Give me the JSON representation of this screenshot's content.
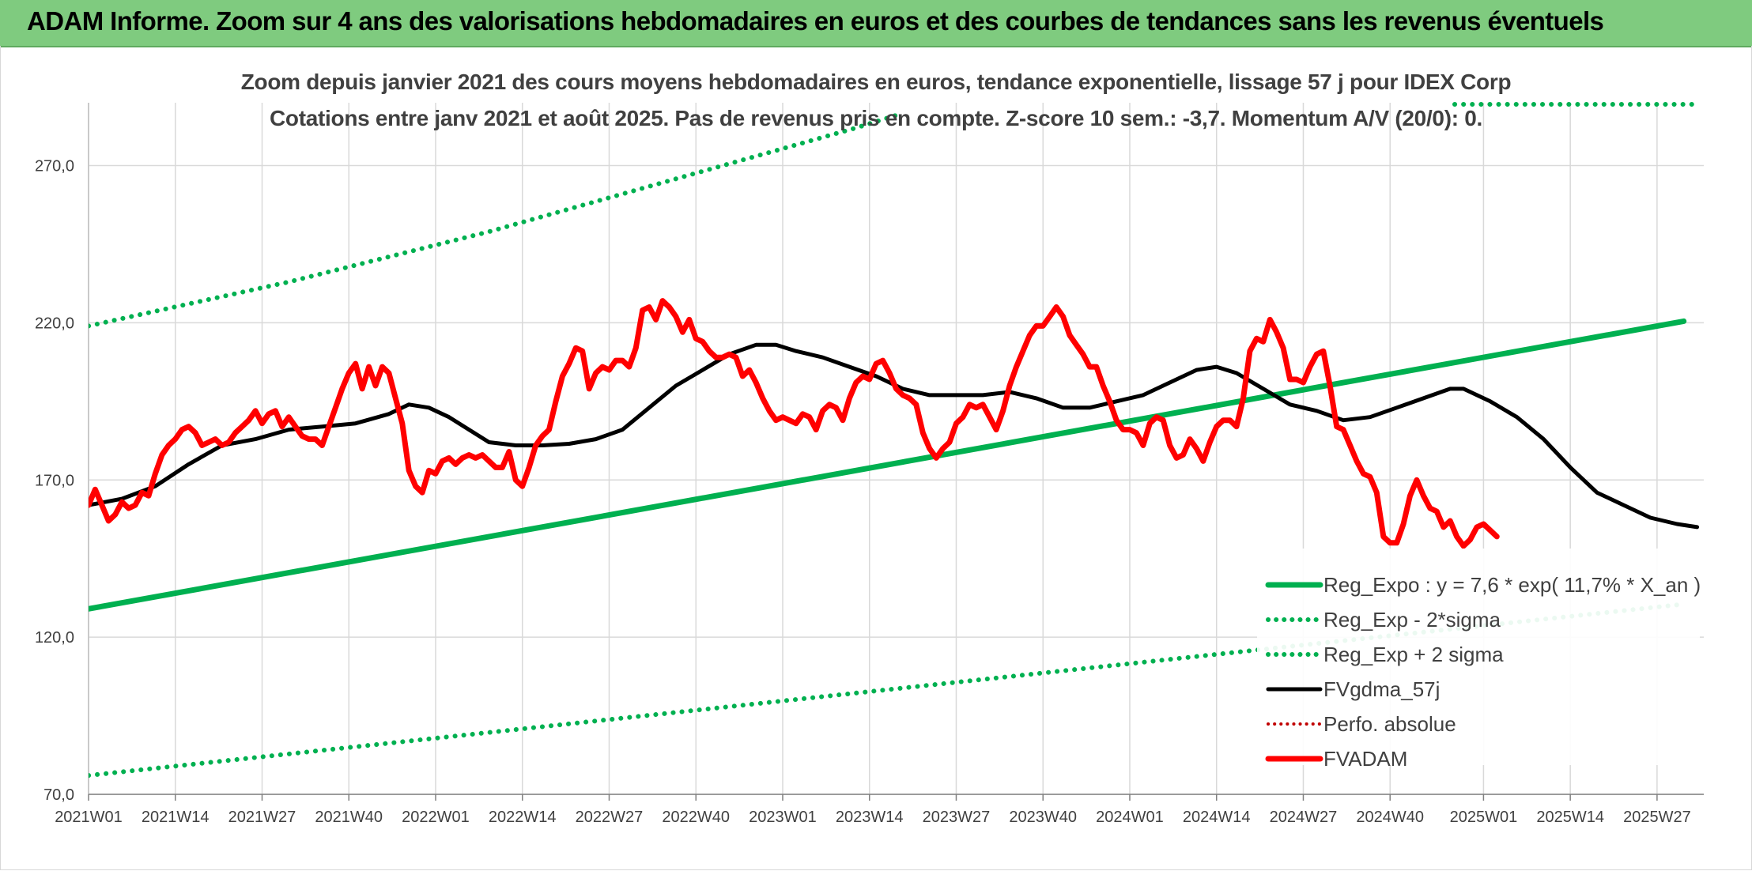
{
  "banner": {
    "title": "ADAM Informe. Zoom sur 4 ans des valorisations hebdomadaires en euros et des courbes de tendances sans les revenus éventuels"
  },
  "colors": {
    "banner_bg": "#7fcb7f",
    "trend": "#00b050",
    "fvadam": "#ff0000",
    "fvgdma": "#000000",
    "perfo": "#c00000",
    "grid": "#d9d9d9"
  },
  "chart_data": {
    "type": "line",
    "title_line1": "Zoom depuis janvier 2021 des cours moyens hebdomadaires en euros, tendance exponentielle, lissage 57 j pour IDEX Corp",
    "title_line2": "Cotations entre janv 2021 et août 2025. Pas de revenus pris en compte. Z-score 10 sem.: -3,7. Momentum A/V (20/0): 0.",
    "ylim": [
      70,
      290
    ],
    "y_ticks": [
      "70,0",
      "120,0",
      "170,0",
      "220,0",
      "270,0"
    ],
    "y_tick_values": [
      70,
      120,
      170,
      220,
      270
    ],
    "x_tick_labels": [
      "2021W01",
      "2021W14",
      "2021W27",
      "2021W40",
      "2022W01",
      "2022W14",
      "2022W27",
      "2022W40",
      "2023W01",
      "2023W14",
      "2023W27",
      "2023W40",
      "2024W01",
      "2024W14",
      "2024W27",
      "2024W40",
      "2025W01",
      "2025W14",
      "2025W27"
    ],
    "x_tick_weeks": [
      0,
      13,
      26,
      39,
      52,
      65,
      78,
      91,
      104,
      117,
      130,
      143,
      156,
      169,
      182,
      195,
      209,
      222,
      235
    ],
    "grid": true,
    "legend_position": "bottom-right",
    "series": [
      {
        "name": "Reg_Expo : y = 7,6 * exp( 11,7% *  X_an )",
        "color": "#00b050",
        "style": "solid",
        "points": [
          [
            0,
            129
          ],
          [
            239,
            220.5
          ]
        ]
      },
      {
        "name": "Reg_Exp - 2*sigma",
        "color": "#00b050",
        "style": "dotted",
        "points": [
          [
            0,
            76
          ],
          [
            239,
            130.5
          ]
        ]
      },
      {
        "name": "Reg_Exp + 2 sigma",
        "color": "#00b050",
        "style": "dotted",
        "points": [
          [
            0,
            219
          ],
          [
            15,
            226
          ],
          [
            30,
            233
          ],
          [
            45,
            241
          ],
          [
            60,
            249
          ],
          [
            75,
            258
          ],
          [
            90,
            267
          ],
          [
            105,
            276
          ],
          [
            115,
            282
          ],
          [
            121,
            286
          ]
        ]
      },
      {
        "name": "FVgdma_57j",
        "color": "#000000",
        "style": "solid",
        "points": [
          [
            0,
            162
          ],
          [
            5,
            164
          ],
          [
            10,
            168
          ],
          [
            15,
            175
          ],
          [
            20,
            181
          ],
          [
            25,
            183
          ],
          [
            30,
            186
          ],
          [
            35,
            187
          ],
          [
            40,
            188
          ],
          [
            45,
            191
          ],
          [
            48,
            194
          ],
          [
            51,
            193
          ],
          [
            54,
            190
          ],
          [
            57,
            186
          ],
          [
            60,
            182
          ],
          [
            64,
            181
          ],
          [
            68,
            181
          ],
          [
            72,
            181.5
          ],
          [
            76,
            183
          ],
          [
            80,
            186
          ],
          [
            84,
            193
          ],
          [
            88,
            200
          ],
          [
            92,
            205
          ],
          [
            96,
            210
          ],
          [
            100,
            213
          ],
          [
            103,
            213
          ],
          [
            106,
            211
          ],
          [
            110,
            209
          ],
          [
            114,
            206
          ],
          [
            118,
            203
          ],
          [
            122,
            199
          ],
          [
            126,
            197
          ],
          [
            130,
            197
          ],
          [
            134,
            197
          ],
          [
            138,
            198
          ],
          [
            142,
            196
          ],
          [
            146,
            193
          ],
          [
            150,
            193
          ],
          [
            154,
            195
          ],
          [
            158,
            197
          ],
          [
            162,
            201
          ],
          [
            166,
            205
          ],
          [
            169,
            206
          ],
          [
            172,
            204
          ],
          [
            176,
            199
          ],
          [
            180,
            194
          ],
          [
            184,
            192
          ],
          [
            188,
            189
          ],
          [
            192,
            190
          ],
          [
            196,
            193
          ],
          [
            200,
            196
          ],
          [
            204,
            199
          ],
          [
            206,
            199
          ],
          [
            210,
            195
          ],
          [
            214,
            190
          ],
          [
            218,
            183
          ],
          [
            222,
            174
          ],
          [
            226,
            166
          ],
          [
            230,
            162
          ],
          [
            234,
            158
          ],
          [
            238,
            156
          ],
          [
            241,
            155
          ]
        ]
      },
      {
        "name": "Perfo. absolue",
        "color": "#c00000",
        "style": "dotted",
        "points": []
      },
      {
        "name": "FVADAM",
        "color": "#ff0000",
        "style": "solid",
        "points": [
          [
            0,
            162
          ],
          [
            1,
            167
          ],
          [
            2,
            162
          ],
          [
            3,
            157
          ],
          [
            4,
            159
          ],
          [
            5,
            163
          ],
          [
            6,
            161
          ],
          [
            7,
            162
          ],
          [
            8,
            166
          ],
          [
            9,
            165
          ],
          [
            10,
            172
          ],
          [
            11,
            178
          ],
          [
            12,
            181
          ],
          [
            13,
            183
          ],
          [
            14,
            186
          ],
          [
            15,
            187
          ],
          [
            16,
            185
          ],
          [
            17,
            181
          ],
          [
            18,
            182
          ],
          [
            19,
            183
          ],
          [
            20,
            181
          ],
          [
            21,
            182
          ],
          [
            22,
            185
          ],
          [
            23,
            187
          ],
          [
            24,
            189
          ],
          [
            25,
            192
          ],
          [
            26,
            188
          ],
          [
            27,
            191
          ],
          [
            28,
            192
          ],
          [
            29,
            187
          ],
          [
            30,
            190
          ],
          [
            31,
            187
          ],
          [
            32,
            184
          ],
          [
            33,
            183
          ],
          [
            34,
            183
          ],
          [
            35,
            181
          ],
          [
            36,
            187
          ],
          [
            37,
            193
          ],
          [
            38,
            199
          ],
          [
            39,
            204
          ],
          [
            40,
            207
          ],
          [
            41,
            199
          ],
          [
            42,
            206
          ],
          [
            43,
            200
          ],
          [
            44,
            206
          ],
          [
            45,
            204
          ],
          [
            46,
            196
          ],
          [
            47,
            188
          ],
          [
            48,
            173
          ],
          [
            49,
            168
          ],
          [
            50,
            166
          ],
          [
            51,
            173
          ],
          [
            52,
            172
          ],
          [
            53,
            176
          ],
          [
            54,
            177
          ],
          [
            55,
            175
          ],
          [
            56,
            177
          ],
          [
            57,
            178
          ],
          [
            58,
            177
          ],
          [
            59,
            178
          ],
          [
            60,
            176
          ],
          [
            61,
            174
          ],
          [
            62,
            174
          ],
          [
            63,
            179
          ],
          [
            64,
            170
          ],
          [
            65,
            168
          ],
          [
            66,
            174
          ],
          [
            67,
            181
          ],
          [
            68,
            184
          ],
          [
            69,
            186
          ],
          [
            70,
            195
          ],
          [
            71,
            203
          ],
          [
            72,
            207
          ],
          [
            73,
            212
          ],
          [
            74,
            211
          ],
          [
            75,
            199
          ],
          [
            76,
            204
          ],
          [
            77,
            206
          ],
          [
            78,
            205
          ],
          [
            79,
            208
          ],
          [
            80,
            208
          ],
          [
            81,
            206
          ],
          [
            82,
            212
          ],
          [
            83,
            224
          ],
          [
            84,
            225
          ],
          [
            85,
            221
          ],
          [
            86,
            227
          ],
          [
            87,
            225
          ],
          [
            88,
            222
          ],
          [
            89,
            217
          ],
          [
            90,
            221
          ],
          [
            91,
            215
          ],
          [
            92,
            214
          ],
          [
            93,
            211
          ],
          [
            94,
            209
          ],
          [
            95,
            209
          ],
          [
            96,
            210
          ],
          [
            97,
            209
          ],
          [
            98,
            203
          ],
          [
            99,
            205
          ],
          [
            100,
            201
          ],
          [
            101,
            196
          ],
          [
            102,
            192
          ],
          [
            103,
            189
          ],
          [
            104,
            190
          ],
          [
            105,
            189
          ],
          [
            106,
            188
          ],
          [
            107,
            191
          ],
          [
            108,
            190
          ],
          [
            109,
            186
          ],
          [
            110,
            192
          ],
          [
            111,
            194
          ],
          [
            112,
            193
          ],
          [
            113,
            189
          ],
          [
            114,
            196
          ],
          [
            115,
            201
          ],
          [
            116,
            203
          ],
          [
            117,
            202
          ],
          [
            118,
            207
          ],
          [
            119,
            208
          ],
          [
            120,
            204
          ],
          [
            121,
            199
          ],
          [
            122,
            197
          ],
          [
            123,
            196
          ],
          [
            124,
            194
          ],
          [
            125,
            185
          ],
          [
            126,
            180
          ],
          [
            127,
            177
          ],
          [
            128,
            180
          ],
          [
            129,
            182
          ],
          [
            130,
            188
          ],
          [
            131,
            190
          ],
          [
            132,
            194
          ],
          [
            133,
            193
          ],
          [
            134,
            194
          ],
          [
            135,
            190
          ],
          [
            136,
            186
          ],
          [
            137,
            192
          ],
          [
            138,
            200
          ],
          [
            139,
            206
          ],
          [
            140,
            211
          ],
          [
            141,
            216
          ],
          [
            142,
            219
          ],
          [
            143,
            219
          ],
          [
            144,
            222
          ],
          [
            145,
            225
          ],
          [
            146,
            222
          ],
          [
            147,
            216
          ],
          [
            148,
            213
          ],
          [
            149,
            210
          ],
          [
            150,
            206
          ],
          [
            151,
            206
          ],
          [
            152,
            200
          ],
          [
            153,
            195
          ],
          [
            154,
            189
          ],
          [
            155,
            186
          ],
          [
            156,
            186
          ],
          [
            157,
            185
          ],
          [
            158,
            181
          ],
          [
            159,
            188
          ],
          [
            160,
            190
          ],
          [
            161,
            189
          ],
          [
            162,
            181
          ],
          [
            163,
            177
          ],
          [
            164,
            178
          ],
          [
            165,
            183
          ],
          [
            166,
            180
          ],
          [
            167,
            176
          ],
          [
            168,
            182
          ],
          [
            169,
            187
          ],
          [
            170,
            189
          ],
          [
            171,
            189
          ],
          [
            172,
            187
          ],
          [
            173,
            196
          ],
          [
            174,
            211
          ],
          [
            175,
            215
          ],
          [
            176,
            214
          ],
          [
            177,
            221
          ],
          [
            178,
            217
          ],
          [
            179,
            212
          ],
          [
            180,
            202
          ],
          [
            181,
            202
          ],
          [
            182,
            201
          ],
          [
            183,
            206
          ],
          [
            184,
            210
          ],
          [
            185,
            211
          ],
          [
            186,
            200
          ],
          [
            187,
            187
          ],
          [
            188,
            186
          ],
          [
            189,
            181
          ],
          [
            190,
            176
          ],
          [
            191,
            172
          ],
          [
            192,
            171
          ],
          [
            193,
            166
          ],
          [
            194,
            152
          ],
          [
            195,
            150
          ],
          [
            196,
            150
          ],
          [
            197,
            156
          ],
          [
            198,
            165
          ],
          [
            199,
            170
          ],
          [
            200,
            165
          ],
          [
            201,
            161
          ],
          [
            202,
            160
          ],
          [
            203,
            155
          ],
          [
            204,
            157
          ],
          [
            205,
            152
          ],
          [
            206,
            149
          ],
          [
            207,
            151
          ],
          [
            208,
            155
          ],
          [
            209,
            156
          ],
          [
            210,
            154
          ],
          [
            211,
            152
          ]
        ]
      }
    ]
  }
}
